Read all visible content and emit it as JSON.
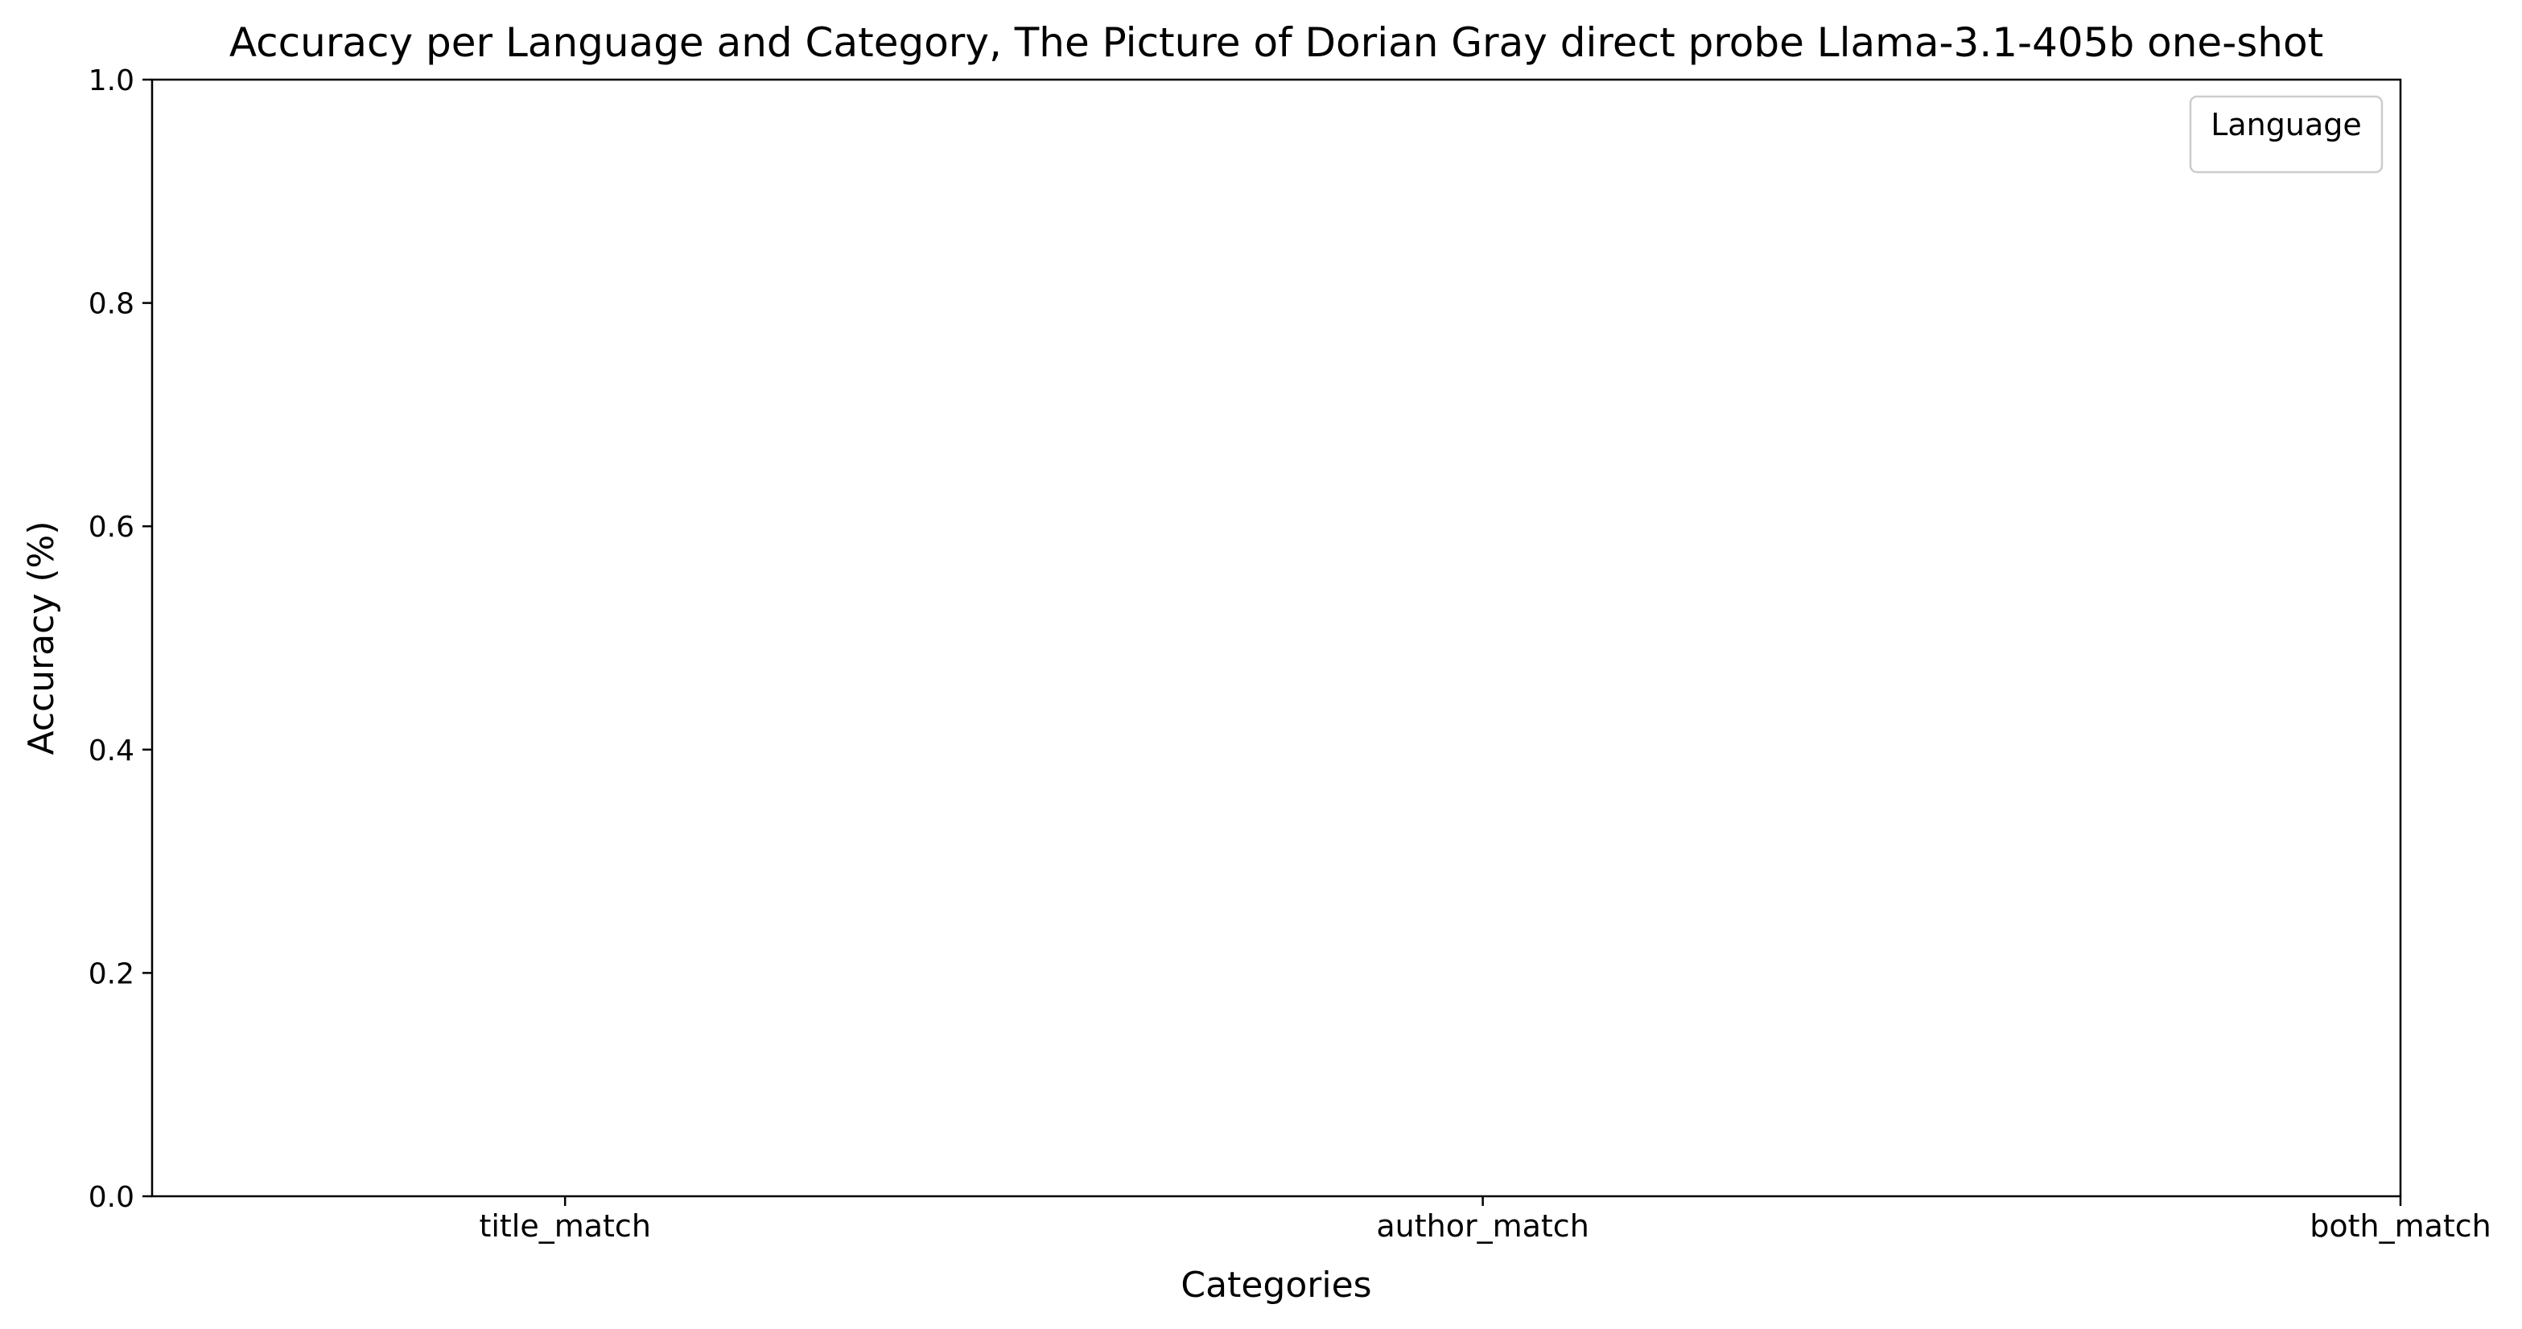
{
  "chart_data": {
    "type": "bar",
    "title": "Accuracy per Language and Category, The Picture of Dorian Gray direct probe Llama-3.1-405b one-shot",
    "xlabel": "Categories",
    "ylabel": "Accuracy (%)",
    "categories": [
      "title_match",
      "author_match",
      "both_match"
    ],
    "series": [],
    "ylim": [
      0,
      1
    ],
    "yticks": [
      "0.0",
      "0.2",
      "0.4",
      "0.6",
      "0.8",
      "1.0"
    ],
    "legend": {
      "title": "Language",
      "placement": "top-right"
    },
    "grid": false
  }
}
